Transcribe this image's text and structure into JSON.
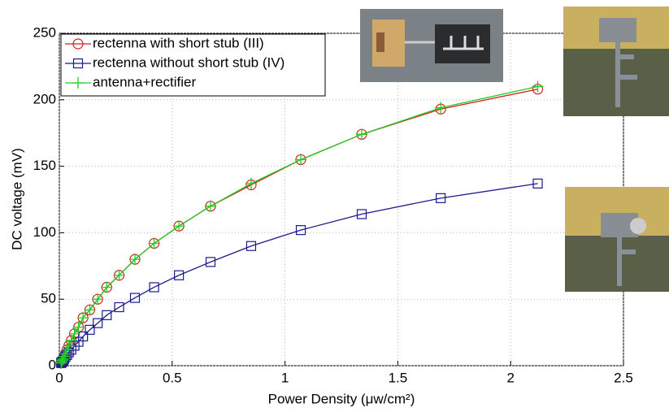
{
  "chart_data": {
    "type": "line",
    "x_label": "Power Density (μw/cm²)",
    "y_label": "DC voltage (mV)",
    "x": [
      0.008,
      0.01,
      0.013,
      0.017,
      0.021,
      0.027,
      0.034,
      0.042,
      0.053,
      0.067,
      0.085,
      0.105,
      0.135,
      0.17,
      0.21,
      0.265,
      0.335,
      0.42,
      0.53,
      0.67,
      0.85,
      1.07,
      1.34,
      1.69,
      2.12
    ],
    "series": [
      {
        "name": "rectenna with short stub (III)",
        "color": "#d42020",
        "marker": "circle",
        "values": [
          2,
          3,
          4,
          5,
          7,
          9,
          12,
          15,
          19,
          24,
          29,
          36,
          42,
          50,
          59,
          68,
          80,
          92,
          105,
          120,
          136,
          155,
          174,
          193,
          208
        ]
      },
      {
        "name": "rectenna without short stub (IV)",
        "color": "#1a1a8c",
        "marker": "square",
        "values": [
          2,
          2.5,
          3,
          4,
          5,
          6.5,
          8,
          10,
          12,
          15,
          18,
          22,
          27,
          32,
          38,
          44,
          51,
          59,
          68,
          78,
          90,
          102,
          114,
          126,
          137
        ]
      },
      {
        "name": "antenna+rectifier",
        "color": "#22cc22",
        "marker": "plus",
        "values": [
          2,
          3,
          4,
          5,
          7,
          9,
          12,
          15,
          19,
          24,
          29,
          36,
          42,
          50,
          59,
          68,
          80,
          92,
          105,
          120,
          137,
          155,
          174,
          194,
          210
        ]
      }
    ],
    "xlim": [
      0,
      2.5
    ],
    "xticks": [
      0,
      0.5,
      1,
      1.5,
      2,
      2.5
    ],
    "ylim": [
      0,
      250
    ],
    "yticks": [
      0,
      50,
      100,
      150,
      200,
      250
    ],
    "grid": true,
    "legend": "upper left"
  }
}
